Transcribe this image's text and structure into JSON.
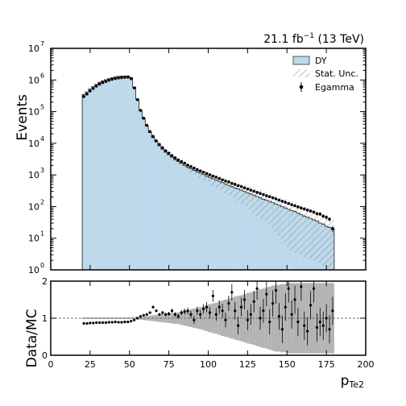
{
  "chart_data": [
    {
      "type": "histogram",
      "panel": "main",
      "ylabel": "Events",
      "yscale": "log",
      "ylim": [
        1,
        10000000
      ],
      "xlim": [
        0,
        200
      ],
      "y_ticks": [
        "10",
        "10",
        "10",
        "10",
        "10",
        "10",
        "10",
        "10"
      ],
      "y_tick_exponents": [
        "0",
        "1",
        "2",
        "3",
        "4",
        "5",
        "6",
        "7"
      ],
      "y_tick_values": [
        1,
        10,
        100,
        1000,
        10000,
        100000,
        1000000,
        10000000
      ],
      "lumi_label": "21.1 fb",
      "lumi_exponent": "−1",
      "lumi_energy": "(13 TeV)",
      "legend": {
        "position": "top-right",
        "entries": [
          {
            "label": "DY",
            "style": "fill",
            "color": "#bcd8ea"
          },
          {
            "label": "Stat. Unc.",
            "style": "hatch"
          },
          {
            "label": "Egamma",
            "style": "marker"
          }
        ]
      },
      "bin_width": 2,
      "bin_edges_start": 20,
      "mc": [
        350000,
        420000,
        520000,
        620000,
        730000,
        840000,
        940000,
        1020000,
        1100000,
        1180000,
        1240000,
        1300000,
        1330000,
        1340000,
        1350000,
        1200000,
        600000,
        250000,
        110000,
        60000,
        35000,
        22000,
        15000,
        11000,
        8300,
        6500,
        5200,
        4300,
        3600,
        3050,
        2650,
        2300,
        2000,
        1750,
        1560,
        1400,
        1270,
        1140,
        1030,
        930,
        840,
        760,
        690,
        630,
        570,
        520,
        470,
        430,
        390,
        360,
        330,
        300,
        270,
        250,
        230,
        210,
        190,
        170,
        160,
        145,
        135,
        120,
        110,
        100,
        90,
        82,
        75,
        70,
        62,
        56,
        50,
        46,
        42,
        38,
        35,
        30,
        28,
        24,
        22,
        20
      ],
      "data": [
        300000,
        360000,
        450000,
        540000,
        640000,
        740000,
        830000,
        900000,
        980000,
        1050000,
        1110000,
        1160000,
        1190000,
        1210000,
        1220000,
        1100000,
        560000,
        240000,
        110000,
        62000,
        37000,
        23500,
        16500,
        12000,
        9200,
        7200,
        5800,
        4900,
        4100,
        3500,
        3000,
        2650,
        2350,
        2050,
        1830,
        1640,
        1480,
        1340,
        1220,
        1110,
        1010,
        920,
        850,
        770,
        700,
        640,
        600,
        540,
        500,
        460,
        430,
        390,
        360,
        330,
        305,
        280,
        260,
        240,
        220,
        205,
        190,
        175,
        160,
        148,
        136,
        125,
        115,
        106,
        98,
        90,
        84,
        78,
        72,
        67,
        60,
        58,
        50,
        46,
        40,
        20
      ]
    },
    {
      "type": "scatter",
      "panel": "ratio",
      "ylabel": "Data/MC",
      "xlabel": "p",
      "xlabel_sub": "Te2",
      "xlim": [
        0,
        200
      ],
      "ylim": [
        0,
        2
      ],
      "reference_line": 1,
      "x_ticks": [
        0,
        25,
        50,
        75,
        100,
        125,
        150,
        175,
        200
      ],
      "y_ticks": [
        0,
        1,
        2
      ],
      "x": [
        21,
        23,
        25,
        27,
        29,
        31,
        33,
        35,
        37,
        39,
        41,
        43,
        45,
        47,
        49,
        51,
        53,
        55,
        57,
        59,
        61,
        63,
        65,
        67,
        69,
        71,
        73,
        75,
        77,
        79,
        81,
        83,
        85,
        87,
        89,
        91,
        93,
        95,
        97,
        99,
        101,
        103,
        105,
        107,
        109,
        111,
        113,
        115,
        117,
        119,
        121,
        123,
        125,
        127,
        129,
        131,
        133,
        135,
        137,
        139,
        141,
        143,
        145,
        147,
        149,
        151,
        153,
        155,
        157,
        159,
        161,
        163,
        165,
        167,
        169,
        171,
        173,
        175,
        177,
        179
      ],
      "ratio": [
        0.86,
        0.86,
        0.87,
        0.87,
        0.88,
        0.88,
        0.88,
        0.88,
        0.89,
        0.89,
        0.9,
        0.89,
        0.89,
        0.9,
        0.9,
        0.92,
        0.95,
        1.0,
        1.05,
        1.08,
        1.1,
        1.15,
        1.3,
        1.2,
        1.1,
        1.15,
        1.1,
        1.12,
        1.2,
        1.1,
        1.05,
        1.15,
        1.18,
        1.2,
        1.1,
        0.95,
        1.2,
        1.1,
        1.25,
        1.3,
        1.15,
        1.6,
        1.1,
        1.3,
        1.2,
        0.95,
        1.4,
        1.7,
        1.2,
        0.8,
        1.3,
        1.5,
        0.95,
        1.1,
        1.45,
        1.8,
        1.0,
        1.2,
        1.65,
        0.9,
        1.4,
        1.75,
        1.05,
        0.7,
        1.3,
        1.8,
        1.1,
        1.5,
        0.9,
        1.85,
        0.8,
        0.65,
        1.35,
        1.8,
        0.75,
        0.9,
        0.8,
        1.0,
        0.7,
        1.2
      ],
      "unc": [
        0.02,
        0.02,
        0.02,
        0.02,
        0.02,
        0.02,
        0.02,
        0.02,
        0.02,
        0.02,
        0.02,
        0.02,
        0.02,
        0.02,
        0.02,
        0.02,
        0.03,
        0.03,
        0.04,
        0.05,
        0.06,
        0.07,
        0.08,
        0.09,
        0.1,
        0.11,
        0.12,
        0.13,
        0.14,
        0.15,
        0.16,
        0.18,
        0.2,
        0.22,
        0.24,
        0.26,
        0.28,
        0.3,
        0.32,
        0.35,
        0.38,
        0.4,
        0.42,
        0.45,
        0.48,
        0.5,
        0.52,
        0.55,
        0.58,
        0.6,
        0.62,
        0.65,
        0.68,
        0.7,
        0.72,
        0.75,
        0.78,
        0.8,
        0.82,
        0.85,
        0.88,
        0.9,
        0.9,
        0.92,
        0.92,
        0.95,
        0.95,
        0.95,
        0.95,
        0.95,
        0.95,
        0.95,
        0.95,
        0.95,
        0.95,
        0.95,
        0.95,
        0.95,
        0.95,
        0.95
      ]
    }
  ]
}
